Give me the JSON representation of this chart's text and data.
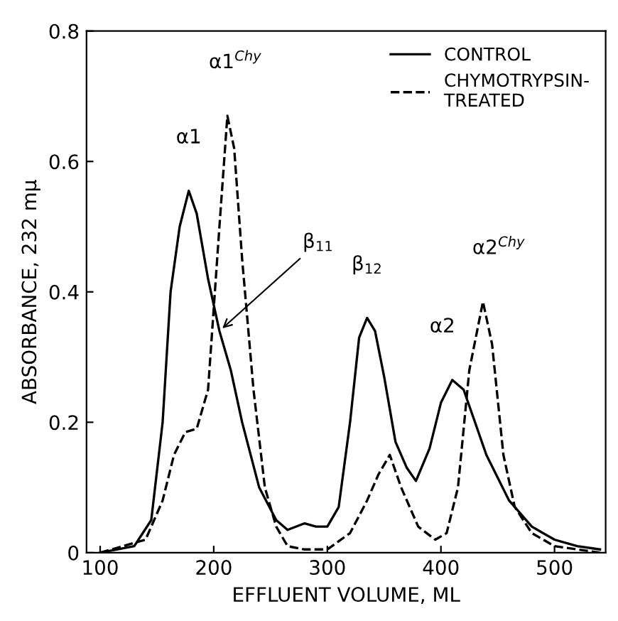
{
  "chart_data": {
    "type": "line",
    "xlabel": "EFFLUENT VOLUME, ML",
    "ylabel": "ABSORBANCE, 232 mμ",
    "xlim": [
      88,
      545
    ],
    "ylim": [
      0,
      0.8
    ],
    "xticks": [
      100,
      200,
      300,
      400,
      500
    ],
    "yticks": [
      0,
      0.2,
      0.4,
      0.6,
      0.8
    ],
    "grid": false,
    "legend": "top right",
    "marker": "none",
    "series": [
      {
        "name": "CONTROL",
        "color": "#000000",
        "line_style": "solid",
        "x": [
          100,
          130,
          145,
          155,
          162,
          170,
          178,
          185,
          195,
          205,
          215,
          225,
          240,
          255,
          265,
          280,
          290,
          300,
          310,
          320,
          328,
          335,
          342,
          350,
          360,
          370,
          378,
          390,
          400,
          410,
          420,
          430,
          440,
          460,
          480,
          500,
          520,
          540
        ],
        "values": [
          0,
          0.01,
          0.05,
          0.2,
          0.4,
          0.5,
          0.555,
          0.52,
          0.42,
          0.34,
          0.28,
          0.2,
          0.1,
          0.05,
          0.035,
          0.045,
          0.04,
          0.04,
          0.07,
          0.2,
          0.33,
          0.36,
          0.34,
          0.27,
          0.17,
          0.13,
          0.11,
          0.16,
          0.23,
          0.265,
          0.25,
          0.2,
          0.15,
          0.08,
          0.04,
          0.02,
          0.01,
          0.005
        ]
      },
      {
        "name": "CHYMOTRYPSIN-\nTREATED",
        "color": "#000000",
        "line_style": "dashed",
        "x": [
          100,
          140,
          155,
          165,
          175,
          185,
          195,
          205,
          212,
          218,
          225,
          235,
          245,
          255,
          265,
          280,
          300,
          320,
          335,
          345,
          355,
          365,
          380,
          395,
          405,
          415,
          425,
          437,
          445,
          455,
          465,
          480,
          500,
          540
        ],
        "values": [
          0,
          0.02,
          0.08,
          0.15,
          0.185,
          0.19,
          0.25,
          0.5,
          0.67,
          0.62,
          0.45,
          0.25,
          0.1,
          0.04,
          0.01,
          0.005,
          0.005,
          0.03,
          0.08,
          0.12,
          0.15,
          0.1,
          0.04,
          0.02,
          0.03,
          0.1,
          0.28,
          0.385,
          0.32,
          0.15,
          0.07,
          0.03,
          0.01,
          0
        ]
      }
    ],
    "annotations": [
      {
        "text": "α1",
        "x": 178,
        "y": 0.555
      },
      {
        "text": "α1$^{Chy}$",
        "x": 212,
        "y": 0.67
      },
      {
        "text": "β$_{11}$",
        "x": 205,
        "y": 0.34
      },
      {
        "text": "β$_{12}$",
        "x": 335,
        "y": 0.36
      },
      {
        "text": "α2",
        "x": 410,
        "y": 0.265
      },
      {
        "text": "α2$^{Chy}$",
        "x": 437,
        "y": 0.385
      }
    ]
  }
}
